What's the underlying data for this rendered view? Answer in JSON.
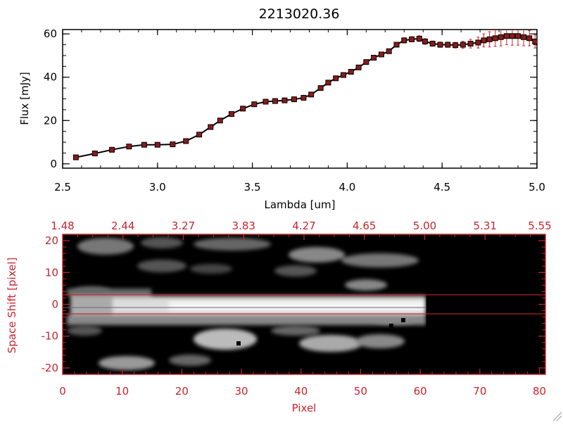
{
  "chart_data": [
    {
      "type": "line",
      "title": "2213020.36",
      "xlabel": "Lambda [um]",
      "ylabel": "Flux [mJy]",
      "xlim": [
        2.5,
        5.0
      ],
      "ylim": [
        -2,
        62
      ],
      "xticks": [
        "2.5",
        "3.0",
        "3.5",
        "4.0",
        "4.5",
        "5.0"
      ],
      "yticks": [
        "0",
        "20",
        "40",
        "60"
      ],
      "grid": false,
      "line_color": "#000000",
      "marker_color": "#8b1a1a",
      "errorbar_color": "#c8242c",
      "x": [
        2.57,
        2.67,
        2.76,
        2.85,
        2.93,
        3.0,
        3.08,
        3.15,
        3.22,
        3.28,
        3.33,
        3.39,
        3.45,
        3.51,
        3.57,
        3.62,
        3.67,
        3.72,
        3.77,
        3.81,
        3.86,
        3.9,
        3.94,
        3.98,
        4.02,
        4.06,
        4.1,
        4.14,
        4.18,
        4.22,
        4.26,
        4.3,
        4.34,
        4.38,
        4.41,
        4.45,
        4.49,
        4.53,
        4.57,
        4.61,
        4.65,
        4.69,
        4.72,
        4.75,
        4.78,
        4.81,
        4.84,
        4.87,
        4.9,
        4.93,
        4.96,
        4.99
      ],
      "y": [
        3.0,
        4.8,
        6.5,
        8.0,
        8.8,
        8.8,
        9.0,
        10.5,
        13.5,
        17.0,
        20.0,
        23.0,
        25.5,
        27.5,
        28.7,
        29.0,
        29.3,
        29.8,
        30.5,
        32.0,
        35.0,
        37.5,
        39.5,
        41.0,
        42.5,
        44.5,
        47.0,
        49.0,
        50.5,
        52.0,
        55.0,
        57.0,
        57.5,
        57.8,
        56.5,
        55.5,
        55.0,
        55.0,
        54.8,
        55.0,
        55.5,
        56.0,
        57.0,
        57.5,
        58.0,
        58.5,
        59.0,
        59.0,
        59.0,
        58.5,
        58.0,
        56.5
      ],
      "yerr": [
        0.5,
        0.5,
        0.5,
        0.5,
        0.5,
        0.5,
        0.5,
        0.6,
        0.6,
        0.6,
        0.6,
        0.6,
        0.6,
        0.6,
        0.6,
        0.6,
        0.6,
        0.6,
        0.6,
        0.6,
        0.7,
        0.7,
        0.7,
        0.7,
        0.7,
        0.8,
        0.8,
        0.8,
        0.8,
        0.9,
        1.0,
        1.2,
        1.2,
        1.3,
        1.3,
        1.2,
        1.2,
        1.2,
        1.3,
        1.6,
        2.0,
        2.5,
        3.0,
        3.5,
        3.8,
        4.0,
        4.0,
        4.2,
        4.2,
        4.0,
        3.5,
        3.0
      ]
    },
    {
      "type": "heatmap",
      "xlabel": "Pixel",
      "ylabel": "Space Shift [pixel]",
      "xlim": [
        0,
        81
      ],
      "ylim": [
        -22,
        22
      ],
      "xticks": [
        "0",
        "10",
        "20",
        "30",
        "40",
        "50",
        "60",
        "70",
        "80"
      ],
      "yticks": [
        "-20",
        "-10",
        "0",
        "10",
        "20"
      ],
      "top_axis_labels": [
        "1.48",
        "2.44",
        "3.27",
        "3.83",
        "4.27",
        "4.65",
        "5.00",
        "5.31",
        "5.55"
      ],
      "data_extent_pixel": 61,
      "aperture_lines": [
        3,
        -3
      ],
      "axis_color": "#c8242c",
      "colormap": "grayscale"
    }
  ]
}
